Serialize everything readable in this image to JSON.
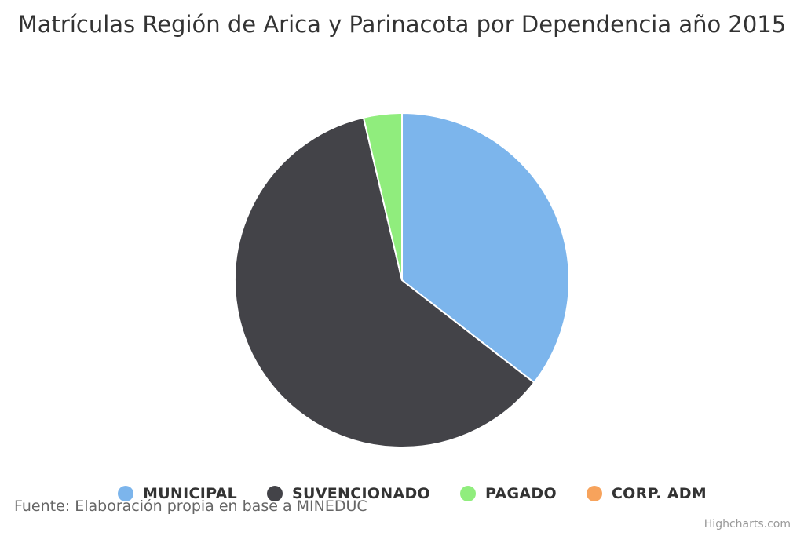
{
  "chart_data": {
    "type": "pie",
    "title": "Matrículas Región de Arica y Parinacota por Dependencia año 2015",
    "subtitle": "",
    "series": [
      {
        "data": [
          {
            "name": "MUNICIPAL",
            "value": 35.5,
            "color": "#7cb5ec"
          },
          {
            "name": "SUVENCIONADO",
            "value": 60.8,
            "color": "#434348"
          },
          {
            "name": "PAGADO",
            "value": 3.7,
            "color": "#90ed7d"
          },
          {
            "name": "CORP. ADM",
            "value": 0.0,
            "color": "#f7a35c"
          }
        ]
      }
    ],
    "legend_placement": "bottom-center"
  },
  "source_note": "Fuente: Elaboración propia en base a MINEDUC",
  "credits": "Highcharts.com"
}
